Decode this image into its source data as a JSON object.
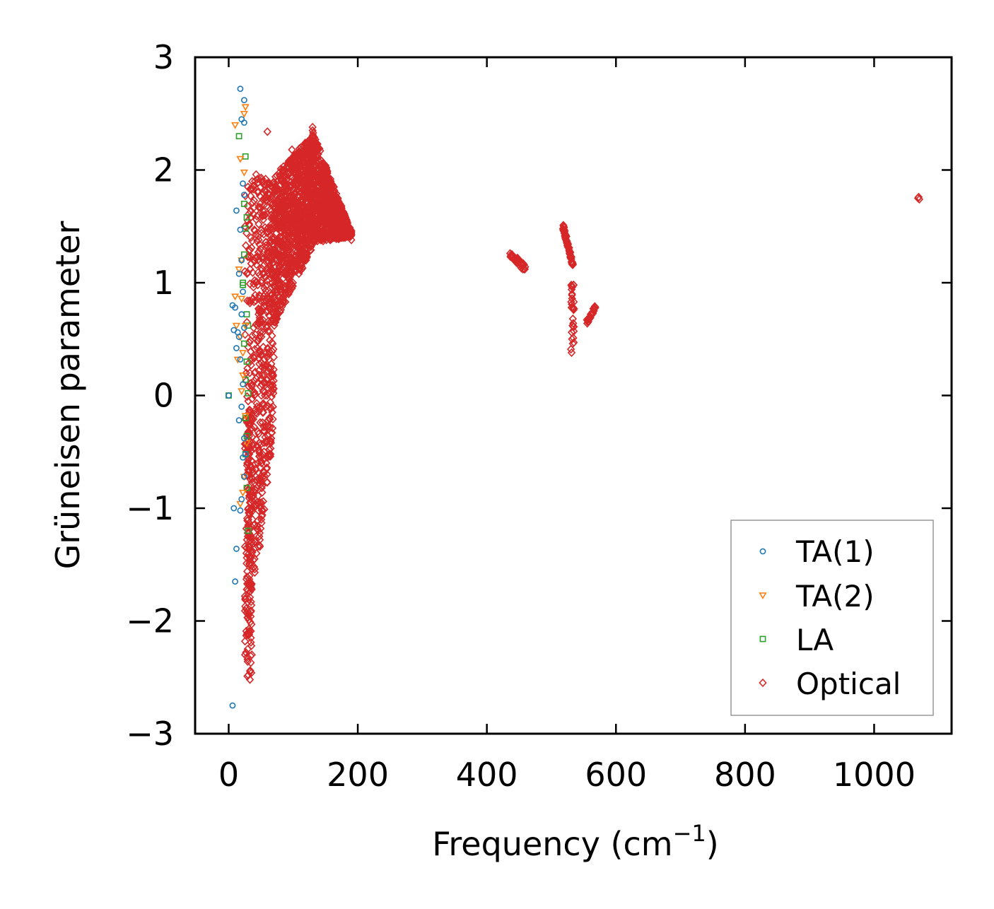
{
  "chart_data": {
    "type": "scatter",
    "title": "",
    "xlabel": "Frequency (cm",
    "xlabel_sup": "−1",
    "xlabel_close": ")",
    "ylabel": "Grüneisen parameter",
    "xlim": [
      -52,
      1120
    ],
    "ylim": [
      -3,
      3
    ],
    "xticks": [
      0,
      200,
      400,
      600,
      800,
      1000
    ],
    "xtick_labels": [
      "0",
      "200",
      "400",
      "600",
      "800",
      "1000"
    ],
    "yticks": [
      -3,
      -2,
      -1,
      0,
      1,
      2,
      3
    ],
    "ytick_labels": [
      "−3",
      "−2",
      "−1",
      "0",
      "1",
      "2",
      "3"
    ],
    "grid": false,
    "legend_position": "lower-right",
    "series": [
      {
        "name": "TA(1)",
        "marker": "circle",
        "color": "#1f77b4",
        "points": [
          [
            18,
            2.72
          ],
          [
            24,
            2.62
          ],
          [
            20,
            2.45
          ],
          [
            24,
            2.42
          ],
          [
            22,
            1.88
          ],
          [
            24,
            1.78
          ],
          [
            12,
            1.64
          ],
          [
            18,
            1.47
          ],
          [
            20,
            1.2
          ],
          [
            16,
            1.08
          ],
          [
            22,
            0.92
          ],
          [
            6,
            0.8
          ],
          [
            10,
            0.78
          ],
          [
            20,
            0.72
          ],
          [
            8,
            0.58
          ],
          [
            14,
            0.56
          ],
          [
            24,
            0.6
          ],
          [
            16,
            0.52
          ],
          [
            12,
            0.42
          ],
          [
            18,
            0.32
          ],
          [
            22,
            0.1
          ],
          [
            20,
            -0.1
          ],
          [
            16,
            -0.22
          ],
          [
            24,
            -0.38
          ],
          [
            22,
            -0.55
          ],
          [
            26,
            -0.52
          ],
          [
            24,
            -0.72
          ],
          [
            20,
            -0.92
          ],
          [
            8,
            -1.0
          ],
          [
            18,
            -1.02
          ],
          [
            12,
            -1.36
          ],
          [
            10,
            -1.65
          ],
          [
            6,
            -2.75
          ],
          [
            0,
            0
          ]
        ]
      },
      {
        "name": "TA(2)",
        "marker": "triangle-down",
        "color": "#ff7f0e",
        "points": [
          [
            10,
            2.4
          ],
          [
            26,
            2.56
          ],
          [
            24,
            2.5
          ],
          [
            18,
            2.1
          ],
          [
            24,
            1.98
          ],
          [
            20,
            1.2
          ],
          [
            16,
            1.12
          ],
          [
            10,
            0.88
          ],
          [
            20,
            0.86
          ],
          [
            12,
            0.62
          ],
          [
            26,
            0.62
          ],
          [
            18,
            0.52
          ],
          [
            22,
            0.38
          ],
          [
            14,
            0.32
          ],
          [
            22,
            0.18
          ],
          [
            20,
            0.04
          ],
          [
            26,
            -0.18
          ],
          [
            28,
            -0.42
          ],
          [
            24,
            -0.72
          ],
          [
            22,
            -0.86
          ],
          [
            18,
            -0.96
          ]
        ]
      },
      {
        "name": "LA",
        "marker": "square",
        "color": "#2ca02c",
        "points": [
          [
            16,
            2.3
          ],
          [
            26,
            2.12
          ],
          [
            24,
            1.7
          ],
          [
            28,
            1.58
          ],
          [
            26,
            1.48
          ],
          [
            24,
            1.25
          ],
          [
            22,
            0.98
          ],
          [
            28,
            0.72
          ],
          [
            30,
            0.62
          ],
          [
            24,
            0.46
          ],
          [
            28,
            0.3
          ],
          [
            26,
            0.14
          ],
          [
            30,
            0.02
          ],
          [
            26,
            -0.2
          ],
          [
            28,
            -0.36
          ],
          [
            26,
            -0.52
          ],
          [
            28,
            -0.82
          ],
          [
            30,
            -1.2
          ],
          [
            22,
            1.0
          ],
          [
            0,
            0
          ]
        ]
      },
      {
        "name": "Optical",
        "marker": "diamond",
        "color": "#d62728",
        "points": []
      }
    ]
  }
}
